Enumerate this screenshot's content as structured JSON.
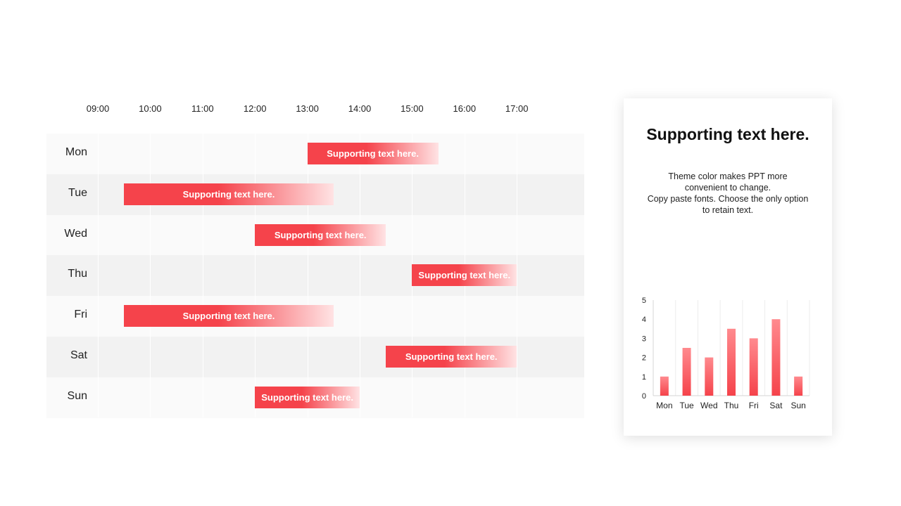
{
  "accent_color": "#f5434b",
  "schedule": {
    "hours": [
      "09:00",
      "10:00",
      "11:00",
      "12:00",
      "13:00",
      "14:00",
      "15:00",
      "16:00",
      "17:00"
    ],
    "days": [
      "Mon",
      "Tue",
      "Wed",
      "Thu",
      "Fri",
      "Sat",
      "Sun"
    ],
    "tasks": [
      {
        "day": "Mon",
        "start": 13.0,
        "end": 15.5,
        "label": "Supporting text here."
      },
      {
        "day": "Tue",
        "start": 9.5,
        "end": 13.5,
        "label": "Supporting text here."
      },
      {
        "day": "Wed",
        "start": 12.0,
        "end": 14.5,
        "label": "Supporting text here."
      },
      {
        "day": "Thu",
        "start": 15.0,
        "end": 17.0,
        "label": "Supporting text here."
      },
      {
        "day": "Fri",
        "start": 9.5,
        "end": 13.5,
        "label": "Supporting text here."
      },
      {
        "day": "Sat",
        "start": 14.5,
        "end": 17.0,
        "label": "Supporting text here."
      },
      {
        "day": "Sun",
        "start": 12.0,
        "end": 14.0,
        "label": "Supporting text here."
      }
    ]
  },
  "card": {
    "title": "Supporting text here.",
    "body_lines": [
      "Theme color makes PPT more",
      "convenient to change.",
      "Copy paste fonts. Choose the only option",
      "to retain text."
    ]
  },
  "chart_data": {
    "type": "bar",
    "categories": [
      "Mon",
      "Tue",
      "Wed",
      "Thu",
      "Fri",
      "Sat",
      "Sun"
    ],
    "values": [
      1,
      2.5,
      2,
      3.5,
      3,
      4,
      1
    ],
    "ylim": [
      0,
      5
    ],
    "yticks": [
      "0",
      "1",
      "2",
      "3",
      "4",
      "5"
    ],
    "grid": true,
    "title": "",
    "xlabel": "",
    "ylabel": ""
  }
}
